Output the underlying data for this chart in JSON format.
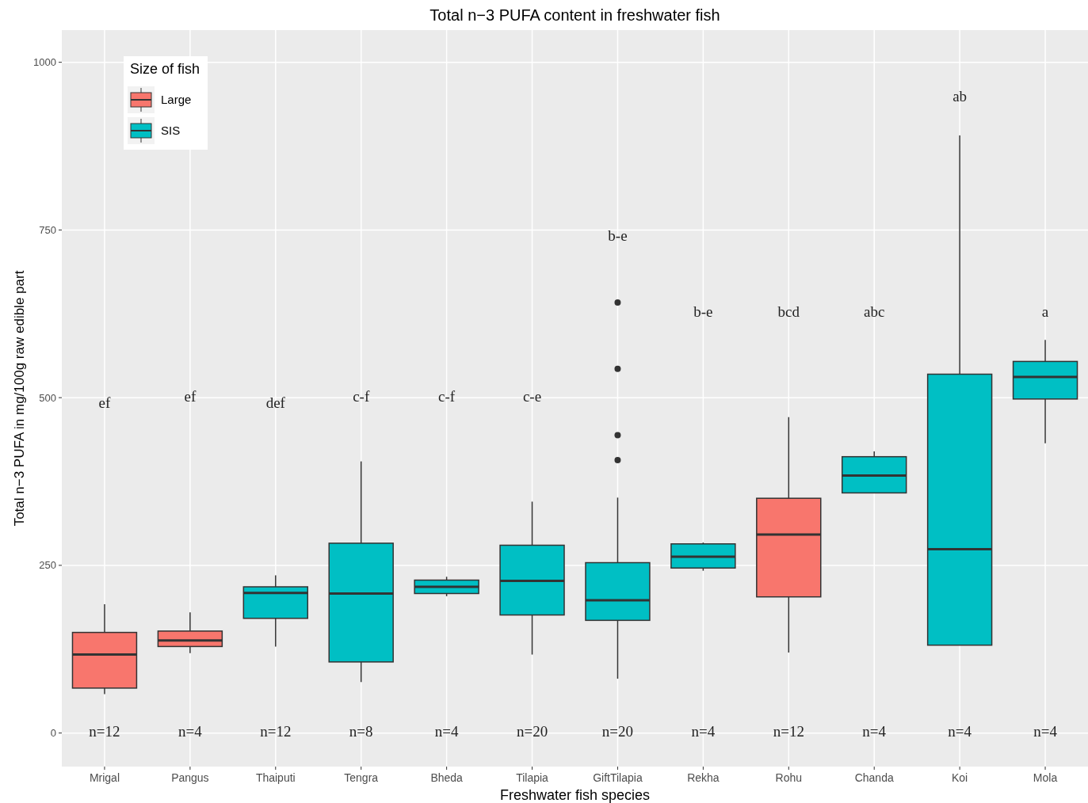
{
  "chart_data": {
    "type": "box",
    "title": "Total n−3 PUFA content in freshwater fish",
    "xlabel": "Freshwater fish species",
    "ylabel": "Total n−3 PUFA in mg/100g raw edible part",
    "legend_title": "Size of fish",
    "legend": "top left",
    "grid": true,
    "categories": [
      "Mrigal",
      "Pangus",
      "Thaiputi",
      "Tengra",
      "Bheda",
      "Tilapia",
      "GiftTilapia",
      "Rekha",
      "Rohu",
      "Chanda",
      "Koi",
      "Mola"
    ],
    "ylim": [
      -50,
      1048
    ],
    "yticks": [
      0,
      250,
      500,
      750,
      1000
    ],
    "series": [
      {
        "name": "Large",
        "color": "#f8766d",
        "boxes": [
          {
            "low": 58,
            "q1": 67,
            "median": 117,
            "q3": 150,
            "high": 192
          },
          {
            "low": 119,
            "q1": 129,
            "median": 138,
            "q3": 152,
            "high": 180
          },
          null,
          null,
          null,
          null,
          null,
          null,
          {
            "low": 120,
            "q1": 203,
            "median": 296,
            "q3": 350,
            "high": 471
          },
          null,
          null,
          null
        ]
      },
      {
        "name": "SIS",
        "color": "#00bfc4",
        "boxes": [
          null,
          null,
          {
            "low": 129,
            "q1": 171,
            "median": 209,
            "q3": 218,
            "high": 235
          },
          {
            "low": 76,
            "q1": 106,
            "median": 208,
            "q3": 283,
            "high": 405
          },
          {
            "low": 204,
            "q1": 208,
            "median": 218,
            "q3": 228,
            "high": 233
          },
          {
            "low": 117,
            "q1": 176,
            "median": 227,
            "q3": 280,
            "high": 345
          },
          {
            "low": 81,
            "q1": 168,
            "median": 198,
            "q3": 254,
            "high": 351,
            "outliers": [
              407,
              444,
              543,
              642
            ]
          },
          {
            "low": 242,
            "q1": 246,
            "median": 263,
            "q3": 282,
            "high": 284
          },
          null,
          {
            "low": 358,
            "q1": 358,
            "median": 384,
            "q3": 412,
            "high": 420
          },
          {
            "low": 131,
            "q1": 131,
            "median": 274,
            "q3": 535,
            "high": 891
          },
          {
            "low": 432,
            "q1": 498,
            "median": 531,
            "q3": 554,
            "high": 586
          }
        ]
      }
    ],
    "annotations": [
      "ef",
      "ef",
      "def",
      "c-f",
      "c-f",
      "c-e",
      "b-e",
      "b-e",
      "bcd",
      "abc",
      "ab",
      "a",
      "n=12",
      "n=4",
      "n=12",
      "n=8",
      "n=4",
      "n=20",
      "n=20",
      "n=4",
      "n=12",
      "n=4",
      "n=4",
      "n=4"
    ]
  }
}
